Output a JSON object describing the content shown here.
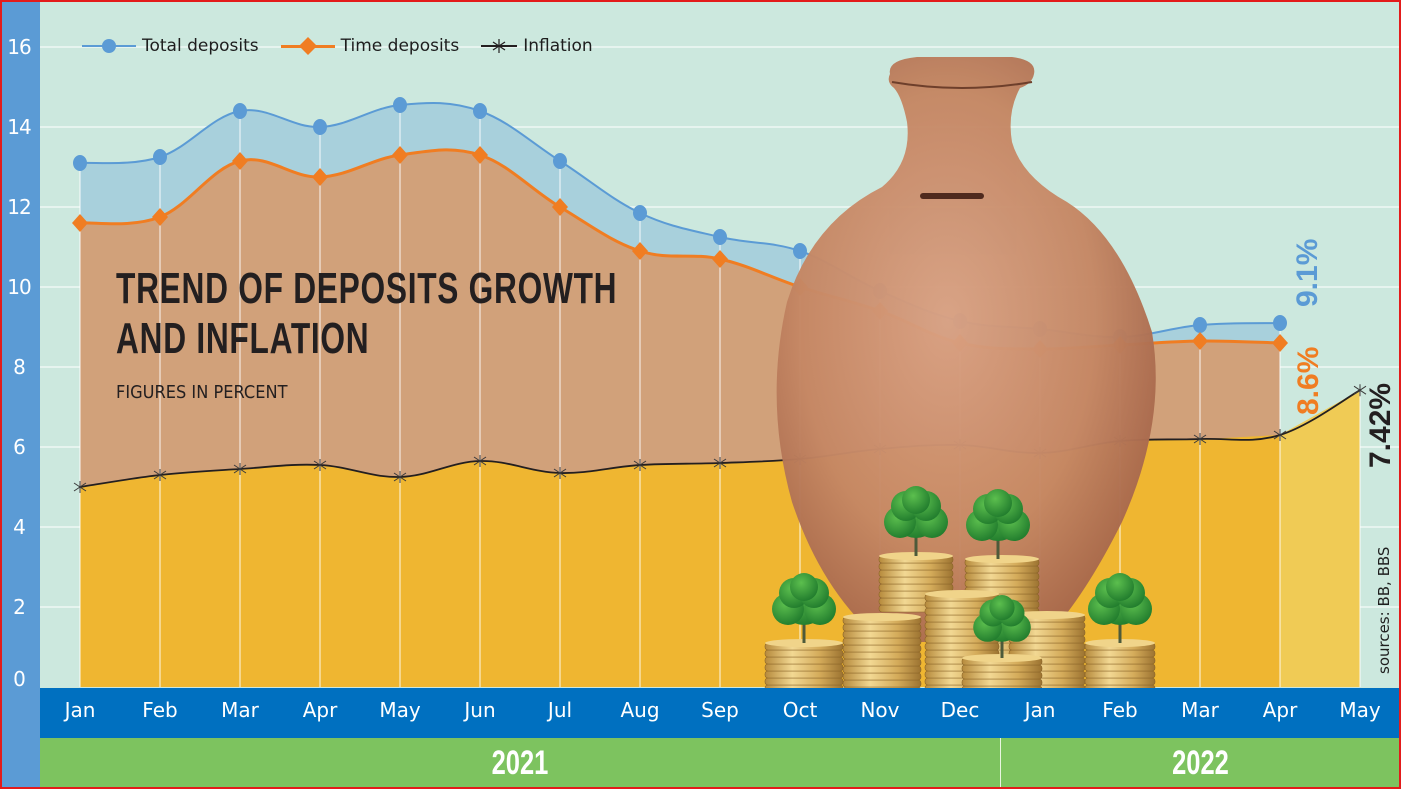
{
  "chart_data": {
    "type": "area",
    "title": "TREND OF DEPOSITS GROWTH AND INFLATION",
    "subtitle": "FIGURES IN PERCENT",
    "xlabel": "",
    "ylabel": "",
    "ylim": [
      0,
      16
    ],
    "y_ticks": [
      0,
      2,
      4,
      6,
      8,
      10,
      12,
      14,
      16
    ],
    "grid": true,
    "legend_position": "top-left",
    "categories": [
      "Jan",
      "Feb",
      "Mar",
      "Apr",
      "May",
      "Jun",
      "Jul",
      "Aug",
      "Sep",
      "Oct",
      "Nov",
      "Dec",
      "Jan",
      "Feb",
      "Mar",
      "Apr",
      "May"
    ],
    "year_groups": [
      {
        "label": "2021",
        "months": 12
      },
      {
        "label": "2022",
        "months": 5
      }
    ],
    "series": [
      {
        "name": "Total deposits",
        "color": "#5b9bd5",
        "marker": "circle",
        "values": [
          13.1,
          13.25,
          14.4,
          14.0,
          14.55,
          14.4,
          13.15,
          11.85,
          11.25,
          10.9,
          9.9,
          9.15,
          8.95,
          8.75,
          9.05,
          9.1,
          null
        ]
      },
      {
        "name": "Time deposits",
        "color": "#f07d22",
        "marker": "diamond",
        "values": [
          11.6,
          11.75,
          13.15,
          12.75,
          13.3,
          13.3,
          12.0,
          10.9,
          10.7,
          10.0,
          9.4,
          8.6,
          8.45,
          8.55,
          8.65,
          8.6,
          null
        ]
      },
      {
        "name": "Inflation",
        "color": "#231f20",
        "marker": "asterisk",
        "values": [
          5.0,
          5.3,
          5.45,
          5.55,
          5.25,
          5.65,
          5.35,
          5.55,
          5.6,
          5.7,
          5.95,
          6.05,
          5.85,
          6.15,
          6.2,
          6.3,
          7.42
        ]
      }
    ],
    "annotations": [
      {
        "text": "9.1%",
        "series": "Total deposits",
        "color": "#5b9bd5"
      },
      {
        "text": "8.6%",
        "series": "Time deposits",
        "color": "#f07d22"
      },
      {
        "text": "7.42%",
        "series": "Inflation",
        "color": "#231f20"
      }
    ],
    "source": "sources: BB, BBS"
  },
  "legend": {
    "total": "Total deposits",
    "time": "Time deposits",
    "inflation": "Inflation"
  },
  "title": {
    "line1": "TREND OF DEPOSITS GROWTH",
    "line2": "AND INFLATION",
    "subtitle": "FIGURES IN PERCENT"
  },
  "labels": {
    "total_last": "9.1%",
    "time_last": "8.6%",
    "inflation_last": "7.42%",
    "source": "sources: BB, BBS"
  },
  "axis": {
    "y_ticks": [
      "0",
      "2",
      "4",
      "6",
      "8",
      "10",
      "12",
      "14",
      "16"
    ],
    "months": [
      "Jan",
      "Feb",
      "Mar",
      "Apr",
      "May",
      "Jun",
      "Jul",
      "Aug",
      "Sep",
      "Oct",
      "Nov",
      "Dec",
      "Jan",
      "Feb",
      "Mar",
      "Apr",
      "May"
    ],
    "years": [
      "2021",
      "2022"
    ]
  },
  "colors": {
    "background": "#cce8de",
    "gridline": "#e6f4ef",
    "total_fill": "#a8d0dc",
    "time_fill": "#d1a17a",
    "inflation_fill": "#efb631",
    "inflation_fill_forecast": "#f0cb55",
    "y_strip": "#5b9bd5",
    "month_band": "#0070c0",
    "year_band": "#7dc35f",
    "border": "#e31b1b"
  }
}
